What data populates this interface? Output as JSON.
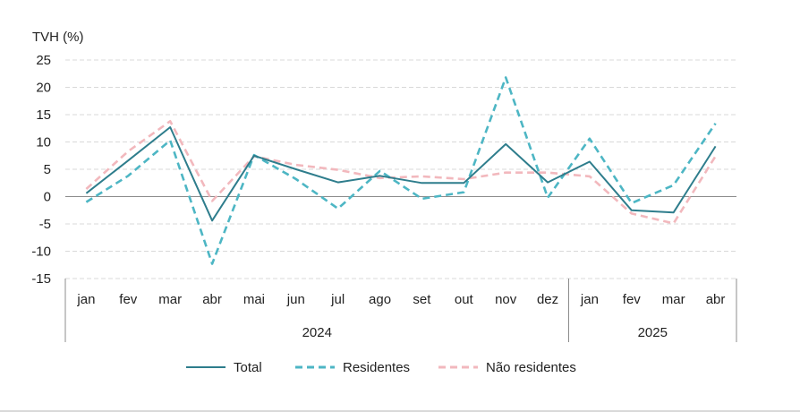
{
  "chart_data": {
    "type": "line",
    "ylabel": "TVH (%)",
    "ylim": [
      -15,
      25
    ],
    "yticks": [
      -15,
      -10,
      -5,
      0,
      5,
      10,
      15,
      20,
      25
    ],
    "grid": true,
    "legend_position": "bottom-center",
    "categories": [
      "jan",
      "fev",
      "mar",
      "abr",
      "mai",
      "jun",
      "jul",
      "ago",
      "set",
      "out",
      "nov",
      "dez",
      "jan",
      "fev",
      "mar",
      "abr"
    ],
    "groups": [
      {
        "label": "2024",
        "start": 0,
        "end": 11
      },
      {
        "label": "2025",
        "start": 12,
        "end": 15
      }
    ],
    "series": [
      {
        "name": "Total",
        "style": "solid",
        "color": "#2e7d8c",
        "values": [
          0.6,
          6.6,
          12.7,
          -4.4,
          7.5,
          5.0,
          2.6,
          3.8,
          2.5,
          2.5,
          9.6,
          2.6,
          6.4,
          -2.5,
          -2.9,
          9.2
        ]
      },
      {
        "name": "Residentes",
        "style": "dashed",
        "color": "#4db6c4",
        "values": [
          -1.0,
          3.8,
          10.3,
          -12.3,
          7.6,
          3.2,
          -2.2,
          4.7,
          -0.4,
          0.8,
          21.8,
          -0.2,
          10.6,
          -1.2,
          2.1,
          13.4
        ]
      },
      {
        "name": "Não residentes",
        "style": "dashed",
        "color": "#f2b8bd",
        "values": [
          1.4,
          8.3,
          13.8,
          -0.8,
          7.4,
          5.8,
          4.9,
          3.4,
          3.7,
          3.2,
          4.4,
          4.4,
          3.7,
          -3.1,
          -4.9,
          7.4
        ]
      }
    ]
  }
}
